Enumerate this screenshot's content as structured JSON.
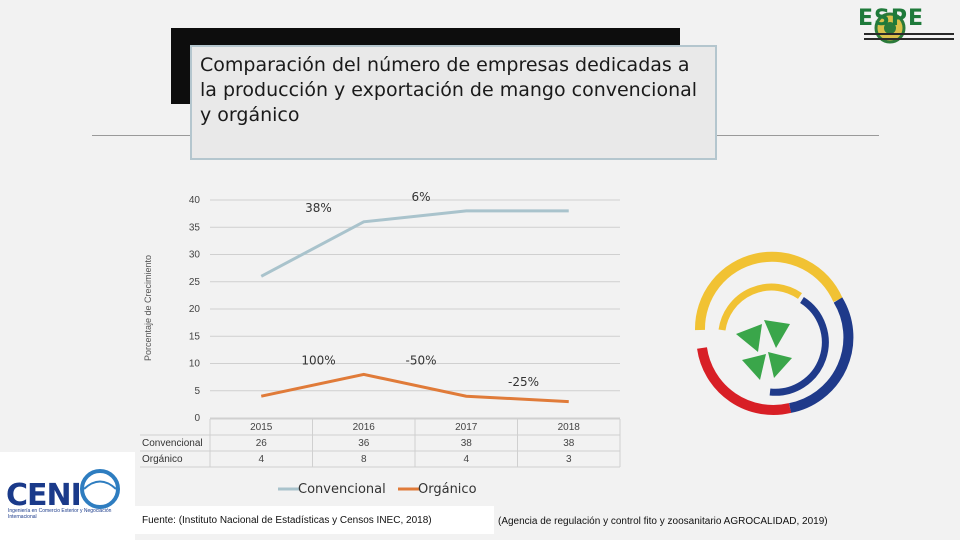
{
  "slide_title": "Comparación del número de empresas dedicadas a la producción y exportación de mango convencional y orgánico",
  "espe_logo": {
    "name": "ESPE",
    "icon": "espe-crest-icon"
  },
  "ceni_logo": {
    "name": "CENI",
    "subtitle": "Ingeniería en Comercio Exterior y Negociación Internacional"
  },
  "source_left": "Fuente: (Instituto Nacional de Estadísticas y Censos INEC, 2018)",
  "source_right": "(Agencia de regulación y control fito y zoosanitario AGROCALIDAD, 2019)",
  "chart_data": {
    "type": "line",
    "ylabel": "Porcentaje de Crecimiento",
    "xlabel": "",
    "ylim": [
      0,
      40
    ],
    "yticks": [
      0,
      5,
      10,
      15,
      20,
      25,
      30,
      35,
      40
    ],
    "categories": [
      "2015",
      "2016",
      "2017",
      "2018"
    ],
    "series": [
      {
        "name": "Convencional",
        "values": [
          26,
          36,
          38,
          38
        ],
        "color": "#a9c3cc"
      },
      {
        "name": "Orgánico",
        "values": [
          4,
          8,
          4,
          3
        ],
        "color": "#e07b39"
      }
    ],
    "annotations": [
      {
        "text": "38%",
        "series": "Convencional",
        "between": [
          "2015",
          "2016"
        ]
      },
      {
        "text": "6%",
        "series": "Convencional",
        "between": [
          "2016",
          "2017"
        ]
      },
      {
        "text": "100%",
        "series": "Orgánico",
        "between": [
          "2015",
          "2016"
        ]
      },
      {
        "text": "-50%",
        "series": "Orgánico",
        "between": [
          "2016",
          "2017"
        ]
      },
      {
        "text": "-25%",
        "series": "Orgánico",
        "between": [
          "2017",
          "2018"
        ]
      }
    ],
    "legend_position": "bottom",
    "data_table": true,
    "grid": "horizontal"
  }
}
